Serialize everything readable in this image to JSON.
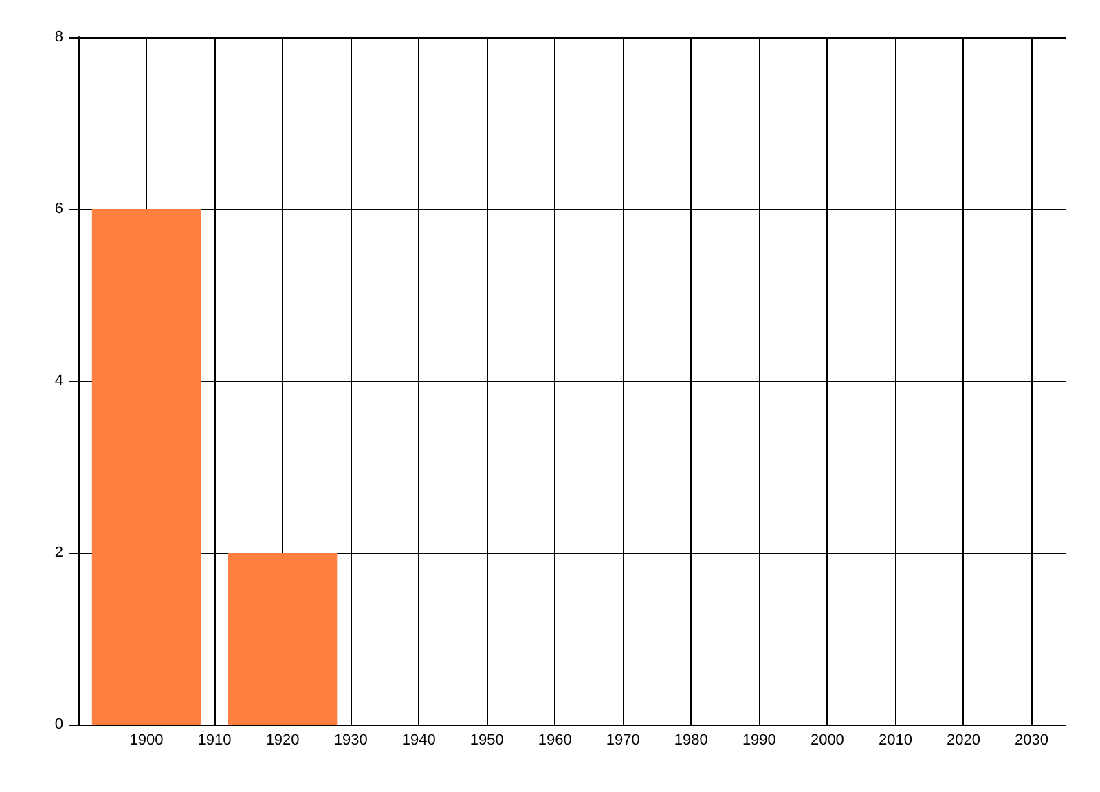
{
  "chart_data": {
    "type": "bar",
    "x": [
      1900,
      1920
    ],
    "values": [
      6,
      2
    ],
    "color": "#ff7f40",
    "xlim": [
      1890,
      2035
    ],
    "xticks": [
      1900,
      1910,
      1920,
      1930,
      1940,
      1950,
      1960,
      1970,
      1980,
      1990,
      2000,
      2010,
      2020,
      2030
    ],
    "ylim": [
      0,
      8
    ],
    "yticks": [
      0,
      2,
      4,
      6,
      8
    ],
    "grid": true
  }
}
